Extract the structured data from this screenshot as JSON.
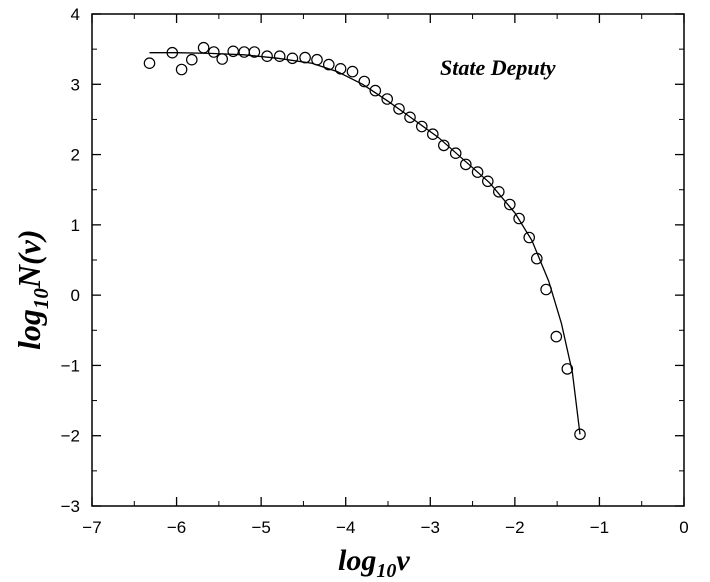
{
  "chart_data": {
    "type": "scatter",
    "annotation": "State Deputy",
    "xlabel": {
      "base": "log",
      "sub": "10",
      "tail": "v"
    },
    "ylabel": {
      "base": "log",
      "sub": "10",
      "tail": "N(v)"
    },
    "xlim": [
      -7,
      0
    ],
    "ylim": [
      -3,
      4
    ],
    "xticks": [
      -7,
      -6,
      -5,
      -4,
      -3,
      -2,
      -1,
      0
    ],
    "yticks": [
      -3,
      -2,
      -1,
      0,
      1,
      2,
      3,
      4
    ],
    "xtick_labels": [
      "−7",
      "−6",
      "−5",
      "−4",
      "−3",
      "−2",
      "−1",
      "0"
    ],
    "ytick_labels": [
      "−3",
      "−2",
      "−1",
      "0",
      "1",
      "2",
      "3",
      "4"
    ],
    "grid": false,
    "series": [
      {
        "marker": "open-circle",
        "x": [
          -6.32,
          -6.05,
          -5.94,
          -5.82,
          -5.68,
          -5.56,
          -5.46,
          -5.33,
          -5.2,
          -5.08,
          -4.93,
          -4.78,
          -4.63,
          -4.48,
          -4.34,
          -4.2,
          -4.06,
          -3.92,
          -3.78,
          -3.65,
          -3.51,
          -3.37,
          -3.24,
          -3.1,
          -2.97,
          -2.84,
          -2.7,
          -2.58,
          -2.44,
          -2.32,
          -2.19,
          -2.06,
          -1.95,
          -1.83,
          -1.74,
          -1.63,
          -1.51,
          -1.38,
          -1.23
        ],
        "y": [
          3.3,
          3.45,
          3.21,
          3.35,
          3.52,
          3.46,
          3.36,
          3.47,
          3.46,
          3.46,
          3.4,
          3.4,
          3.37,
          3.38,
          3.35,
          3.28,
          3.22,
          3.18,
          3.04,
          2.91,
          2.79,
          2.65,
          2.53,
          2.4,
          2.29,
          2.13,
          2.02,
          1.86,
          1.75,
          1.62,
          1.47,
          1.29,
          1.09,
          0.82,
          0.52,
          0.08,
          -0.59,
          -1.05,
          -1.98
        ]
      },
      {
        "marker": "line",
        "x": [
          -6.32,
          -6.0,
          -5.6,
          -5.2,
          -4.8,
          -4.4,
          -4.1,
          -3.8,
          -3.5,
          -3.2,
          -2.9,
          -2.6,
          -2.3,
          -2.0,
          -1.8,
          -1.6,
          -1.45,
          -1.32,
          -1.23
        ],
        "y": [
          3.45,
          3.45,
          3.44,
          3.42,
          3.37,
          3.3,
          3.18,
          3.0,
          2.76,
          2.5,
          2.24,
          1.92,
          1.6,
          1.17,
          0.78,
          0.2,
          -0.4,
          -1.1,
          -1.98
        ]
      }
    ]
  }
}
